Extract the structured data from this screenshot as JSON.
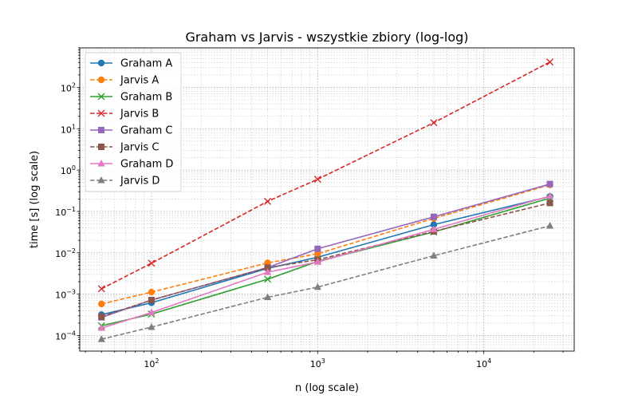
{
  "chart_data": {
    "type": "line",
    "title": "Graham vs Jarvis - wszystkie zbiory (log-log)",
    "xlabel": "n (log scale)",
    "ylabel": "time [s] (log scale)",
    "xscale": "log",
    "yscale": "log",
    "xlim": [
      37,
      35000
    ],
    "ylim": [
      4.2e-05,
      900
    ],
    "grid": "major and minor (dotted)",
    "legend_position": "top-left",
    "x_ticks": [
      {
        "value": 100,
        "base": "10",
        "exp": "2"
      },
      {
        "value": 1000,
        "base": "10",
        "exp": "3"
      },
      {
        "value": 10000,
        "base": "10",
        "exp": "4"
      }
    ],
    "y_ticks": [
      {
        "value": 0.0001,
        "base": "10",
        "exp": "−4"
      },
      {
        "value": 0.001,
        "base": "10",
        "exp": "−3"
      },
      {
        "value": 0.01,
        "base": "10",
        "exp": "−2"
      },
      {
        "value": 0.1,
        "base": "10",
        "exp": "−1"
      },
      {
        "value": 1,
        "base": "10",
        "exp": "0"
      },
      {
        "value": 10,
        "base": "10",
        "exp": "1"
      },
      {
        "value": 100,
        "base": "10",
        "exp": "2"
      }
    ],
    "x": [
      50,
      100,
      500,
      1000,
      5000,
      25000
    ],
    "series": [
      {
        "name": "Graham A",
        "color": "#1f77b4",
        "dashed": false,
        "marker": "circle",
        "values": [
          0.00032,
          0.00062,
          0.0042,
          0.0078,
          0.048,
          0.23
        ]
      },
      {
        "name": "Jarvis A",
        "color": "#ff7f0e",
        "dashed": true,
        "marker": "circle",
        "values": [
          0.00058,
          0.00112,
          0.0057,
          0.0095,
          0.068,
          0.44
        ]
      },
      {
        "name": "Graham B",
        "color": "#2ca02c",
        "dashed": false,
        "marker": "x",
        "values": [
          0.000172,
          0.00033,
          0.0023,
          0.0062,
          0.032,
          0.21
        ]
      },
      {
        "name": "Jarvis B",
        "color": "#d62728",
        "dashed": true,
        "marker": "x",
        "values": [
          0.00135,
          0.0056,
          0.175,
          0.6,
          14,
          410
        ]
      },
      {
        "name": "Graham C",
        "color": "#9467bd",
        "dashed": false,
        "marker": "square",
        "values": [
          0.000275,
          0.00072,
          0.0044,
          0.0125,
          0.074,
          0.46
        ]
      },
      {
        "name": "Jarvis C",
        "color": "#8c564b",
        "dashed": true,
        "marker": "square",
        "values": [
          0.000285,
          0.00072,
          0.0044,
          0.0068,
          0.033,
          0.16
        ]
      },
      {
        "name": "Graham D",
        "color": "#e377c2",
        "dashed": false,
        "marker": "triangle",
        "values": [
          0.000152,
          0.00036,
          0.0034,
          0.006,
          0.037,
          0.235
        ]
      },
      {
        "name": "Jarvis D",
        "color": "#7f7f7f",
        "dashed": true,
        "marker": "triangle",
        "values": [
          8.15e-05,
          0.00016,
          0.00084,
          0.00148,
          0.0085,
          0.045
        ]
      }
    ]
  }
}
